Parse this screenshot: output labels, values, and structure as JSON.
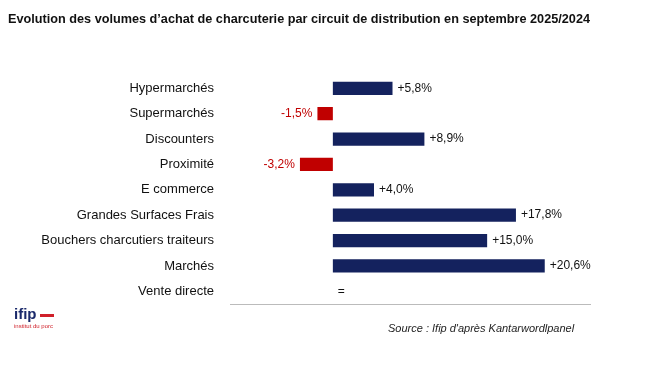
{
  "chart_data": {
    "type": "bar",
    "orientation": "horizontal",
    "title": "Evolution des volumes d’achat de charcuterie par circuit de distribution en septembre 2025/2024",
    "categories": [
      "Hypermarchés",
      "Supermarchés",
      "Discounters",
      "Proximité",
      "E commerce",
      "Grandes Surfaces Frais",
      "Bouchers charcutiers traiteurs",
      "Marchés",
      "Vente directe"
    ],
    "values": [
      5.8,
      -1.5,
      8.9,
      -3.2,
      4.0,
      17.8,
      15.0,
      20.6,
      0
    ],
    "value_labels": [
      "+5,8%",
      "-1,5%",
      "+8,9%",
      "-3,2%",
      "+4,0%",
      "+17,8%",
      "+15,0%",
      "+20,6%",
      "="
    ],
    "colors": [
      "#14225e",
      "#c00000",
      "#14225e",
      "#c00000",
      "#14225e",
      "#14225e",
      "#14225e",
      "#14225e",
      "#14225e"
    ],
    "xlim": [
      -10,
      25
    ],
    "data_labels": true,
    "tick_labels": "y",
    "grid": false,
    "source": "Source : Ifip d'après Kantarwordlpanel",
    "annotations": [
      "ifip",
      "institut du porc"
    ]
  }
}
